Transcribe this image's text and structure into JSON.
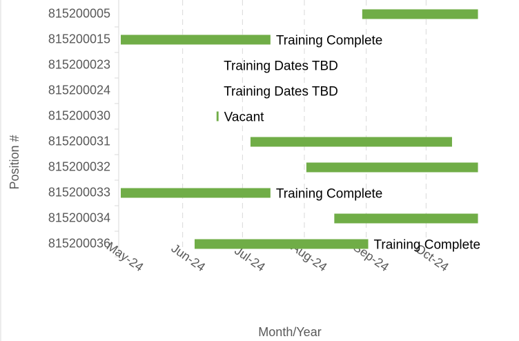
{
  "chart_data": {
    "type": "gantt",
    "categories": [
      "815200005",
      "815200015",
      "815200023",
      "815200024",
      "815200030",
      "815200031",
      "815200032",
      "815200033",
      "815200034",
      "815200036"
    ],
    "start": [
      45534,
      45413,
      null,
      null,
      45461,
      45478,
      45506,
      45413,
      45520,
      45450
    ],
    "end": [
      45592,
      45488,
      null,
      null,
      45462,
      45579,
      45592,
      45488,
      45592,
      45537
    ],
    "bar_labels": [
      null,
      "Training Complete",
      "Training Dates TBD",
      "Training Dates TBD",
      "Vacant",
      null,
      null,
      "Training Complete",
      null,
      "Training Complete"
    ],
    "color": "#70ad47",
    "xlim": [
      45413,
      45597
    ],
    "xticks": [
      {
        "value": 45413,
        "label": "May-24"
      },
      {
        "value": 45444,
        "label": "Jun-24"
      },
      {
        "value": 45474,
        "label": "Jul-24"
      },
      {
        "value": 45505,
        "label": "Aug-24"
      },
      {
        "value": 45536,
        "label": "Sep-24"
      },
      {
        "value": 45566,
        "label": "Oct-24"
      }
    ],
    "grid": true,
    "xlabel": "Month/Year",
    "ylabel": "Position #"
  }
}
